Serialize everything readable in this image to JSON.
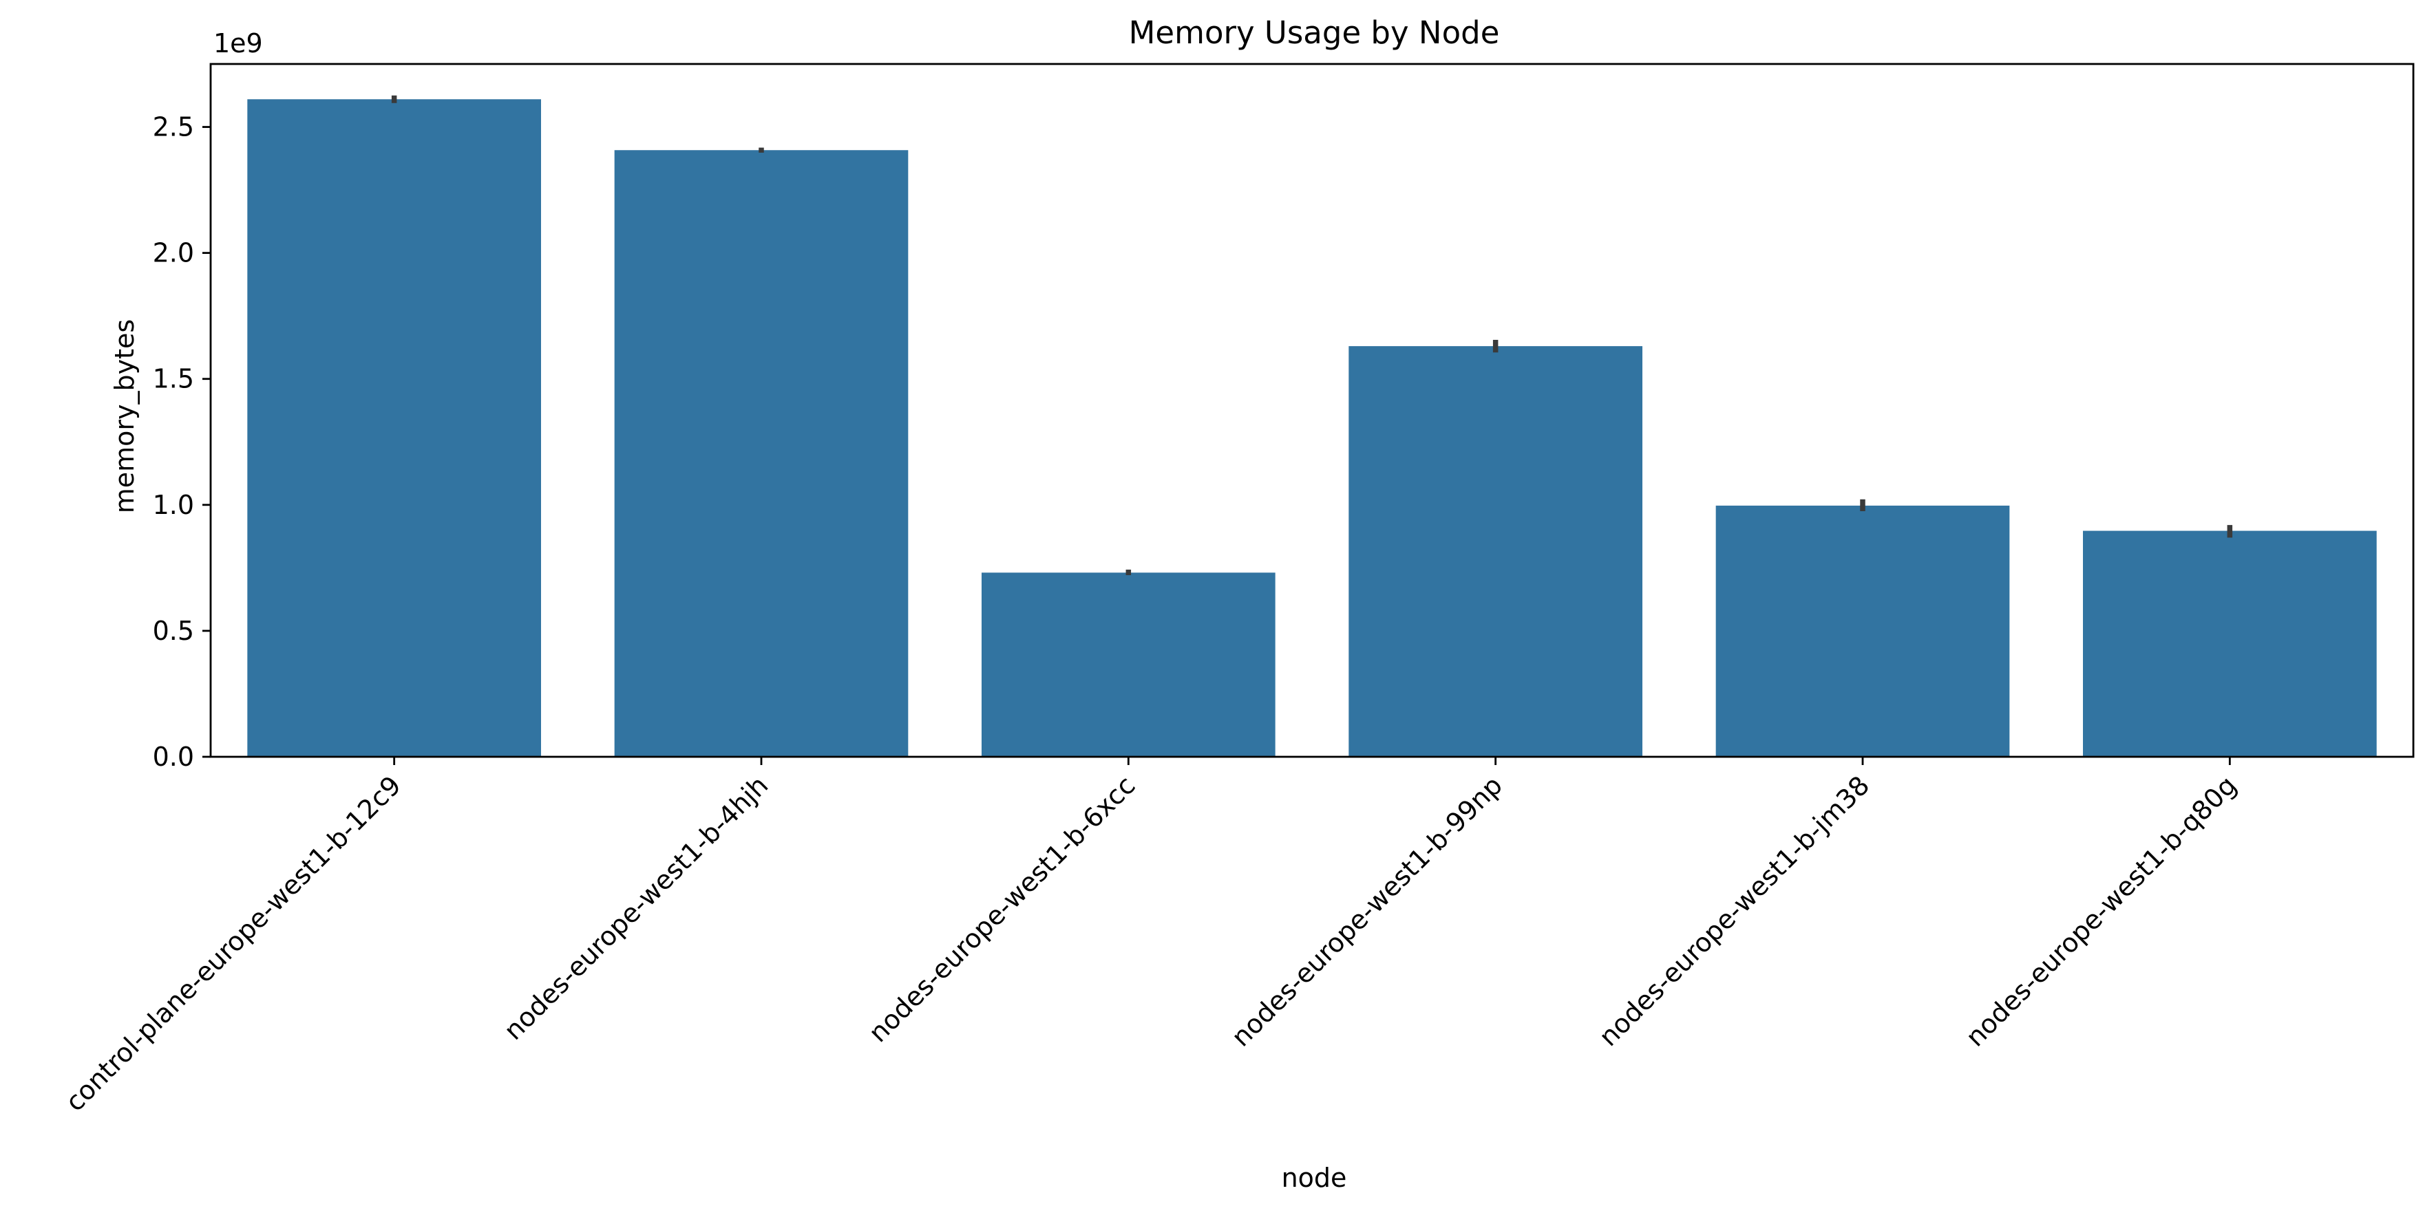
{
  "chart_data": {
    "type": "bar",
    "title": "Memory Usage by Node",
    "xlabel": "node",
    "ylabel": "memory_bytes",
    "y_offset_label": "1e9",
    "y_scale_factor": 1000000000,
    "ylim": [
      0,
      2750000000
    ],
    "yticks": [
      0,
      500000000,
      1000000000,
      1500000000,
      2000000000,
      2500000000
    ],
    "ytick_labels": [
      "0.0",
      "0.5",
      "1.0",
      "1.5",
      "2.0",
      "2.5"
    ],
    "categories": [
      "control-plane-europe-west1-b-12c9",
      "nodes-europe-west1-b-4hjh",
      "nodes-europe-west1-b-6xcc",
      "nodes-europe-west1-b-99np",
      "nodes-europe-west1-b-jm38",
      "nodes-europe-west1-b-q80g"
    ],
    "values": [
      2610000000,
      2408000000,
      731000000,
      1630000000,
      997000000,
      897000000
    ],
    "error_bars": [
      [
        2595000000,
        2625000000
      ],
      [
        2398000000,
        2418000000
      ],
      [
        721000000,
        743000000
      ],
      [
        1605000000,
        1655000000
      ],
      [
        975000000,
        1022000000
      ],
      [
        870000000,
        920000000
      ]
    ],
    "bar_color": "#3274a1",
    "error_color": "#3a3a3a",
    "grid": false,
    "legend": "none"
  }
}
